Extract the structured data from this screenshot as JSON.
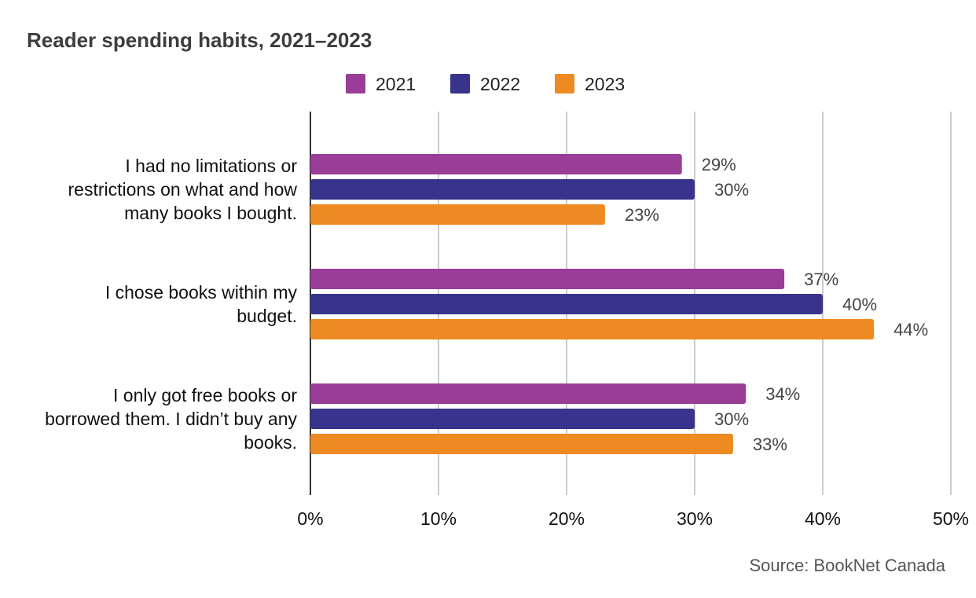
{
  "chart_data": {
    "type": "bar",
    "orientation": "horizontal",
    "title": "Reader spending habits, 2021–2023",
    "categories": [
      [
        "I had no limitations or",
        "restrictions on what and how",
        "many books I bought."
      ],
      [
        "I chose books within my",
        "budget."
      ],
      [
        "I only got free books or",
        "borrowed them. I didn’t buy any",
        "books."
      ]
    ],
    "series": [
      {
        "name": "2021",
        "color": "#993d96",
        "values": [
          29,
          37,
          34
        ],
        "labels": [
          "29%",
          "37%",
          "34%"
        ]
      },
      {
        "name": "2022",
        "color": "#38348c",
        "values": [
          30,
          40,
          30
        ],
        "labels": [
          "30%",
          "40%",
          "30%"
        ]
      },
      {
        "name": "2023",
        "color": "#ee8a22",
        "values": [
          23,
          44,
          33
        ],
        "labels": [
          "23%",
          "44%",
          "33%"
        ]
      }
    ],
    "xlim": [
      0,
      50
    ],
    "xticks": [
      0,
      10,
      20,
      30,
      40,
      50
    ],
    "xtick_labels": [
      "0%",
      "10%",
      "20%",
      "30%",
      "40%",
      "50%"
    ],
    "grid": true,
    "legend_position": "top"
  },
  "source": "Source: BookNet Canada"
}
